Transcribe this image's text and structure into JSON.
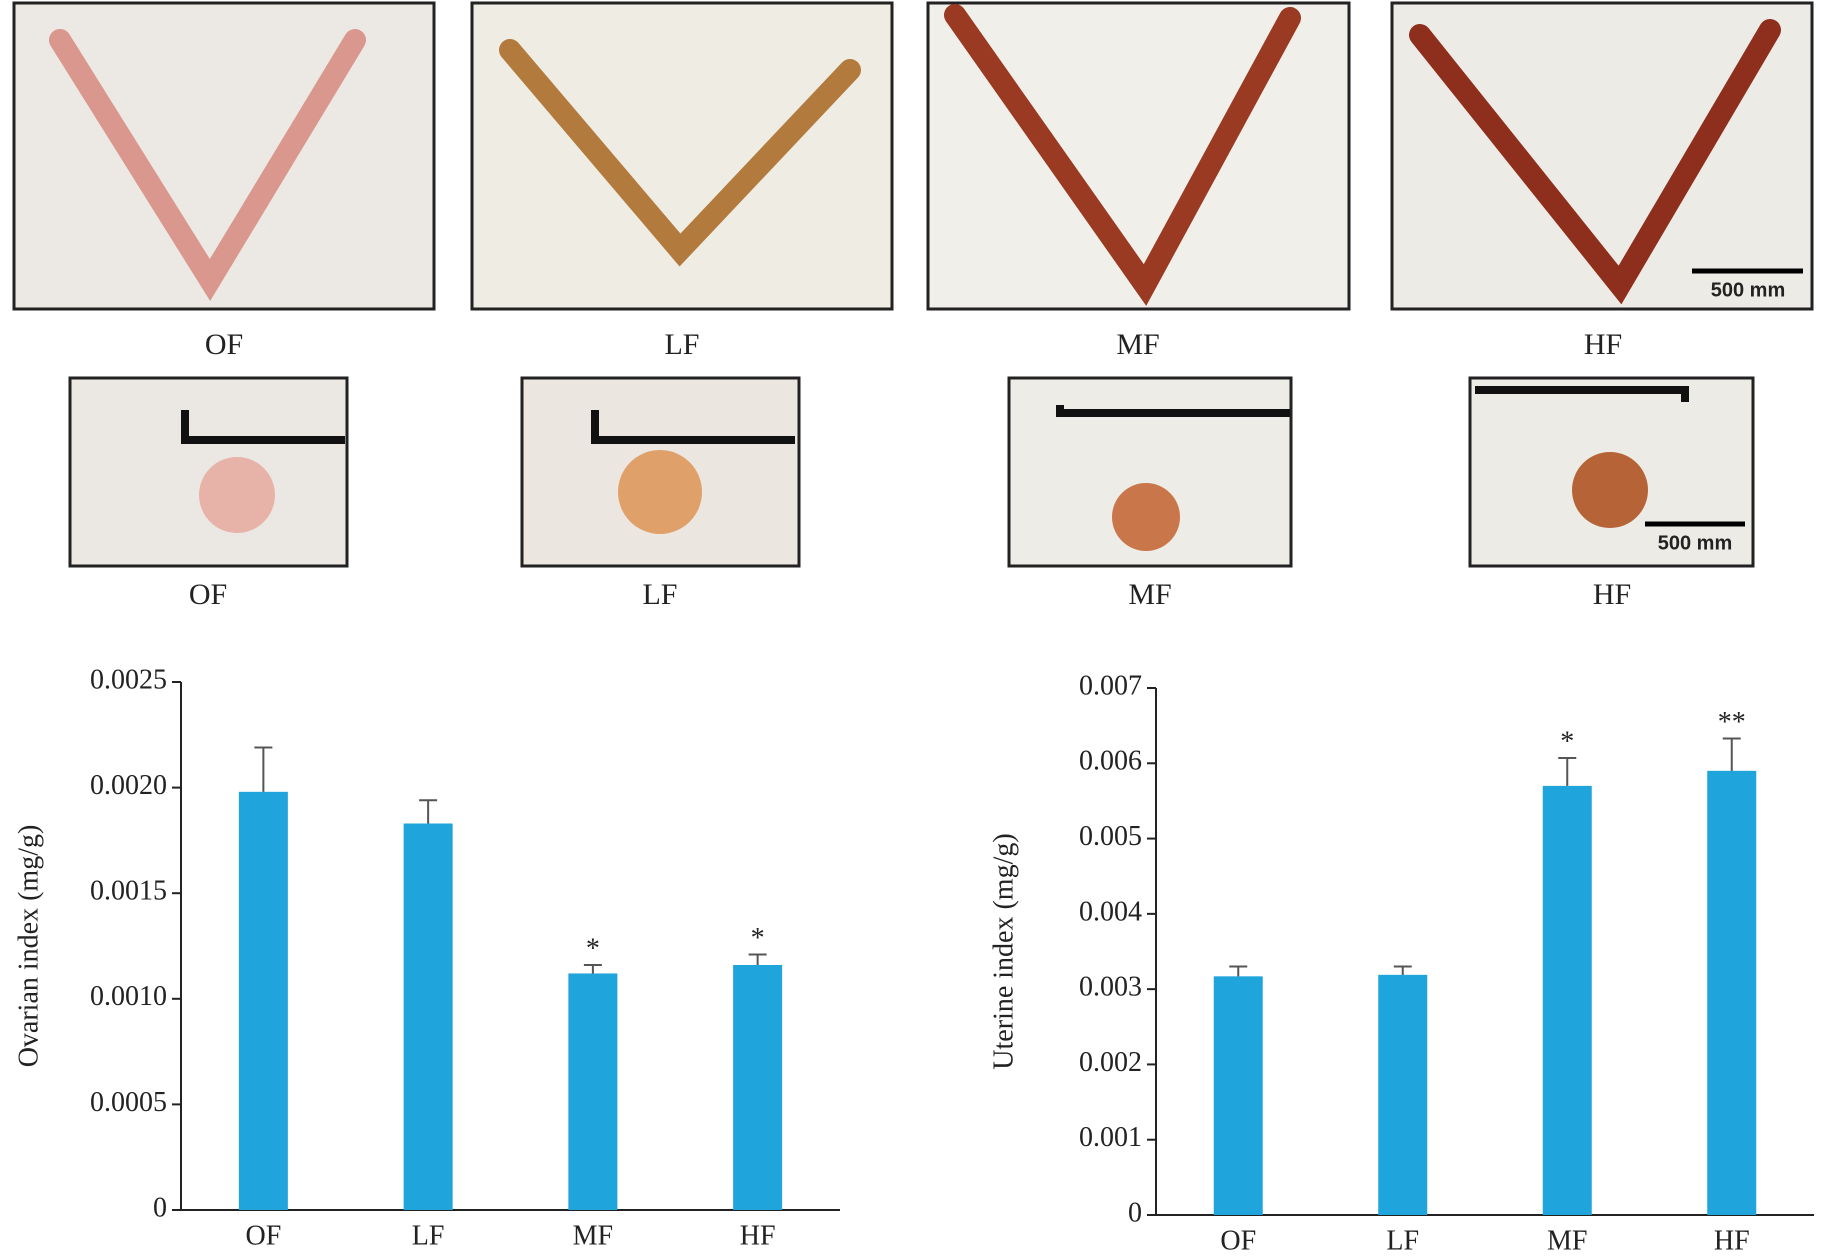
{
  "photos": {
    "uterus": {
      "labels": [
        "OF",
        "LF",
        "MF",
        "HF"
      ],
      "scale_bar": "500 mm"
    },
    "ovary": {
      "labels": [
        "OF",
        "LF",
        "MF",
        "HF"
      ],
      "scale_bar": "500 mm"
    }
  },
  "chart_data": [
    {
      "type": "bar",
      "y_label": "Ovarian index (mg/g)",
      "categories": [
        "OF",
        "LF",
        "MF",
        "HF"
      ],
      "values": [
        0.00198,
        0.00183,
        0.00112,
        0.00116
      ],
      "errors": [
        0.00021,
        0.00011,
        4e-05,
        5e-05
      ],
      "significance": [
        null,
        null,
        "*",
        "*"
      ],
      "color": "#20a4dc",
      "ylim": [
        0,
        0.0025
      ],
      "yticks": [
        0,
        0.0005,
        {
          "value": 0.001,
          "label": "0.0010"
        },
        0.0015,
        {
          "value": 0.002,
          "label": "0.0020"
        },
        0.0025
      ]
    },
    {
      "type": "bar",
      "y_label": "Uterine index (mg/g)",
      "categories": [
        "OF",
        "LF",
        "MF",
        "HF"
      ],
      "values": [
        0.00317,
        0.00319,
        0.0057,
        0.0059
      ],
      "errors": [
        0.00013,
        0.00011,
        0.00037,
        0.00043
      ],
      "significance": [
        null,
        null,
        "*",
        "**"
      ],
      "color": "#20a4dc",
      "ylim": [
        0,
        0.007
      ],
      "yticks": [
        0,
        0.001,
        0.002,
        0.003,
        0.004,
        0.005,
        0.006,
        0.007
      ]
    }
  ]
}
